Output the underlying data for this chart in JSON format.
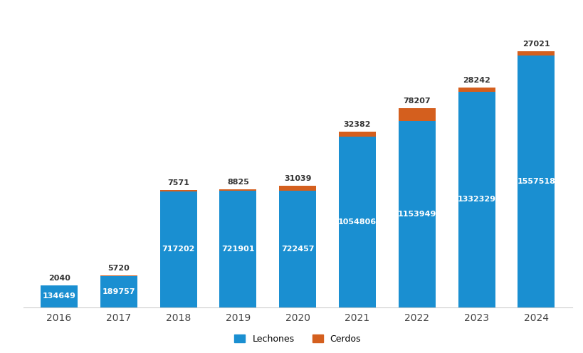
{
  "years": [
    "2016",
    "2017",
    "2018",
    "2019",
    "2020",
    "2021",
    "2022",
    "2023",
    "2024"
  ],
  "lechones": [
    134649,
    189757,
    717202,
    721901,
    722457,
    1054806,
    1153949,
    1332329,
    1557518
  ],
  "cerdos": [
    2040,
    5720,
    7571,
    8825,
    31039,
    32382,
    78207,
    28242,
    27021
  ],
  "bar_color_lechones": "#1a8fd1",
  "bar_color_cerdos": "#d45f1e",
  "background_color": "#ffffff",
  "text_color_inside": "#ffffff",
  "text_color_outside": "#333333",
  "bar_width": 0.62,
  "ylim": [
    0,
    1750000
  ],
  "legend_labels": [
    "Lechones",
    "Cerdos"
  ],
  "watermark_color": "#a8c8e8",
  "label_fontsize": 8.0,
  "xtick_fontsize": 10
}
